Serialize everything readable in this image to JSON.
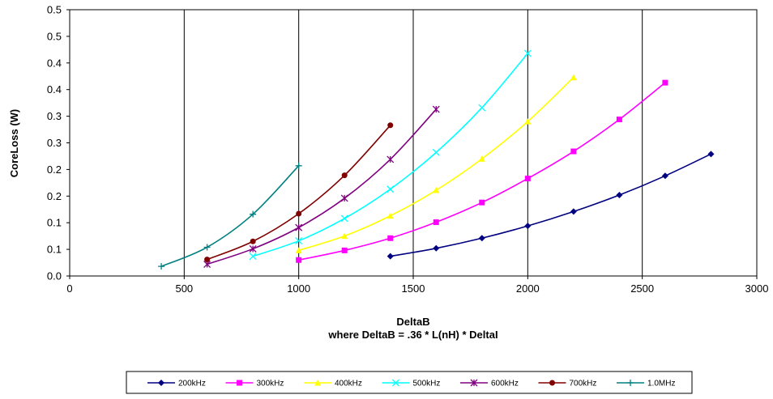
{
  "chart_data": {
    "type": "line",
    "title": "",
    "xlabel": "DeltaB",
    "xlabel_sub": "where DeltaB = .36 * L(nH) * DeltaI",
    "ylabel": "CoreLoss (W)",
    "xlim": [
      0,
      3000
    ],
    "ylim": [
      0,
      0.5
    ],
    "x_ticks": [
      0,
      500,
      1000,
      1500,
      2000,
      2500,
      3000
    ],
    "y_ticks": [
      0,
      0.05,
      0.1,
      0.15,
      0.2,
      0.25,
      0.3,
      0.35,
      0.4,
      0.45,
      0.5
    ],
    "y_tick_labels": [
      "0.0",
      "0.1",
      "0.1",
      "0.2",
      "0.2",
      "0.3",
      "0.3",
      "0.4",
      "0.4",
      "0.5",
      "0.5"
    ],
    "grid": "vertical",
    "legend": "bottom",
    "series": [
      {
        "name": "200kHz",
        "color": "#000080",
        "marker": "diamond",
        "x": [
          1400,
          1600,
          1800,
          2000,
          2200,
          2400,
          2600,
          2800
        ],
        "y": [
          0.037,
          0.052,
          0.071,
          0.094,
          0.121,
          0.152,
          0.188,
          0.229
        ]
      },
      {
        "name": "300kHz",
        "color": "#ff00ff",
        "marker": "square",
        "x": [
          1000,
          1200,
          1400,
          1600,
          1800,
          2000,
          2200,
          2400,
          2600
        ],
        "y": [
          0.03,
          0.048,
          0.071,
          0.101,
          0.138,
          0.183,
          0.234,
          0.294,
          0.363
        ]
      },
      {
        "name": "400kHz",
        "color": "#ffff00",
        "marker": "triangle",
        "x": [
          1000,
          1200,
          1400,
          1600,
          1800,
          2000,
          2200
        ],
        "y": [
          0.048,
          0.075,
          0.113,
          0.161,
          0.22,
          0.29,
          0.373
        ]
      },
      {
        "name": "500kHz",
        "color": "#00ffff",
        "marker": "x",
        "x": [
          800,
          1000,
          1200,
          1400,
          1600,
          1800,
          2000
        ],
        "y": [
          0.037,
          0.066,
          0.108,
          0.163,
          0.232,
          0.316,
          0.418
        ]
      },
      {
        "name": "600kHz",
        "color": "#800080",
        "marker": "star",
        "x": [
          600,
          800,
          1000,
          1200,
          1400,
          1600
        ],
        "y": [
          0.022,
          0.051,
          0.091,
          0.146,
          0.219,
          0.313
        ]
      },
      {
        "name": "700kHz",
        "color": "#800000",
        "marker": "circle",
        "x": [
          600,
          800,
          1000,
          1200,
          1400
        ],
        "y": [
          0.031,
          0.065,
          0.117,
          0.189,
          0.283
        ]
      },
      {
        "name": "1.0MHz",
        "color": "#008080",
        "marker": "plus",
        "x": [
          400,
          600,
          800,
          1000
        ],
        "y": [
          0.018,
          0.054,
          0.116,
          0.207
        ]
      }
    ]
  }
}
